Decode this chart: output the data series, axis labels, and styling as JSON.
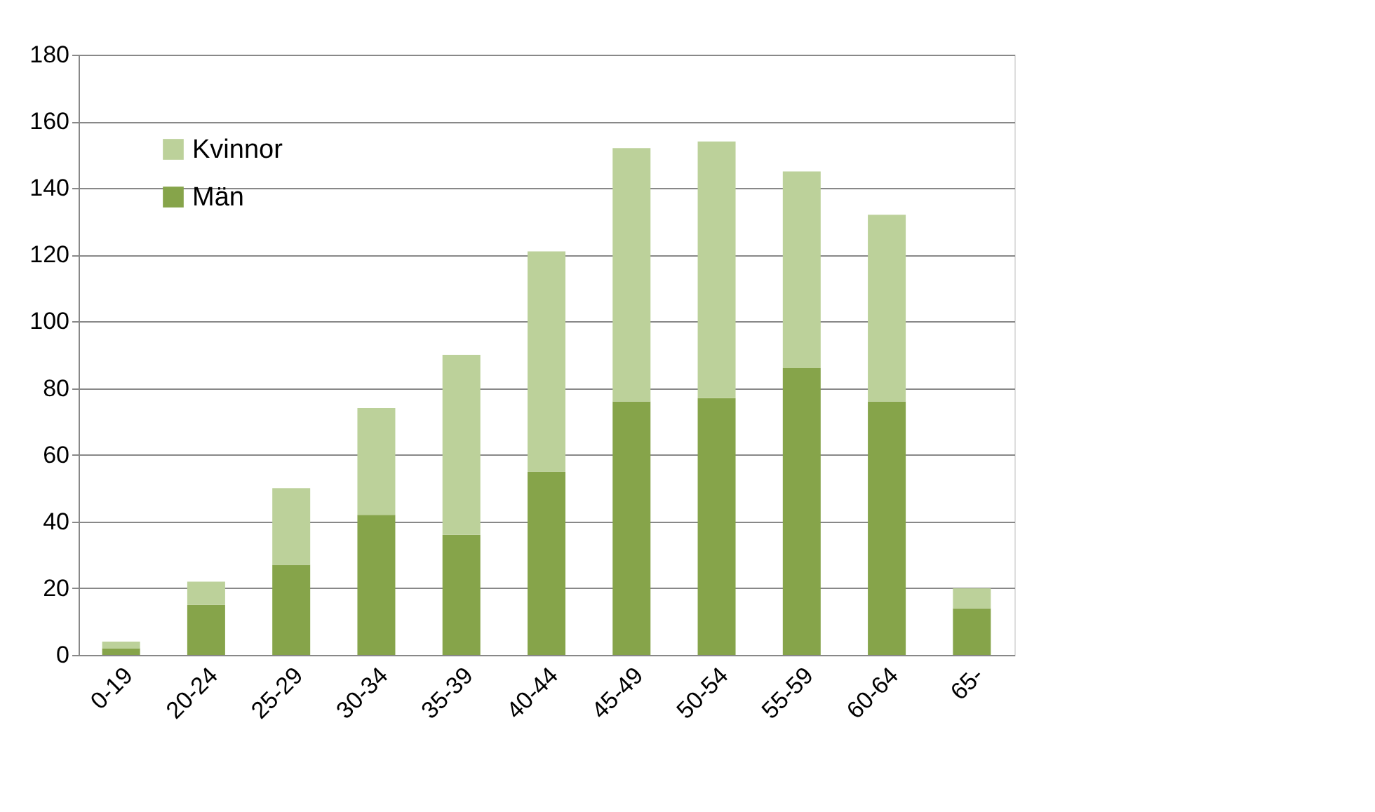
{
  "chart_data": {
    "type": "bar",
    "stacked": true,
    "categories": [
      "0-19",
      "20-24",
      "25-29",
      "30-34",
      "35-39",
      "40-44",
      "45-49",
      "50-54",
      "55-59",
      "60-64",
      "65-"
    ],
    "series": [
      {
        "name": "Män",
        "color": "#86a44a",
        "values": [
          2,
          15,
          27,
          42,
          36,
          55,
          76,
          77,
          86,
          76,
          14
        ]
      },
      {
        "name": "Kvinnor",
        "color": "#bcd19a",
        "values": [
          2,
          7,
          23,
          32,
          54,
          66,
          76,
          77,
          59,
          56,
          6
        ]
      }
    ],
    "ylim": [
      0,
      180
    ],
    "yticks": [
      0,
      20,
      40,
      60,
      80,
      100,
      120,
      140,
      160,
      180
    ],
    "grid": "y",
    "legend": "top left"
  }
}
